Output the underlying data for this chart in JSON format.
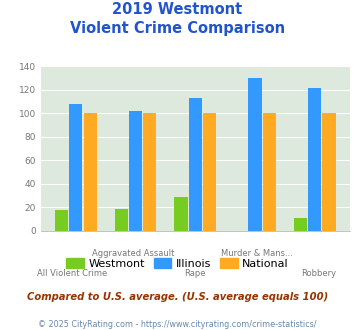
{
  "title_line1": "2019 Westmont",
  "title_line2": "Violent Crime Comparison",
  "xtick_labels_top": [
    "",
    "Aggravated Assault",
    "",
    "Murder & Mans...",
    ""
  ],
  "xtick_labels_bottom": [
    "All Violent Crime",
    "",
    "Rape",
    "",
    "Robbery"
  ],
  "westmont": [
    18,
    19,
    29,
    0,
    11
  ],
  "illinois": [
    108,
    102,
    113,
    130,
    121
  ],
  "national": [
    100,
    100,
    100,
    100,
    100
  ],
  "colors": {
    "westmont": "#77cc22",
    "illinois": "#3399ff",
    "national": "#ffaa22"
  },
  "ylim": [
    0,
    140
  ],
  "yticks": [
    0,
    20,
    40,
    60,
    80,
    100,
    120,
    140
  ],
  "bg_color": "#dce9dc",
  "title_color": "#2255cc",
  "note": "Compared to U.S. average. (U.S. average equals 100)",
  "footer": "© 2025 CityRating.com - https://www.cityrating.com/crime-statistics/",
  "note_color": "#993300",
  "footer_color": "#6688aa",
  "legend_labels": [
    "Westmont",
    "Illinois",
    "National"
  ]
}
